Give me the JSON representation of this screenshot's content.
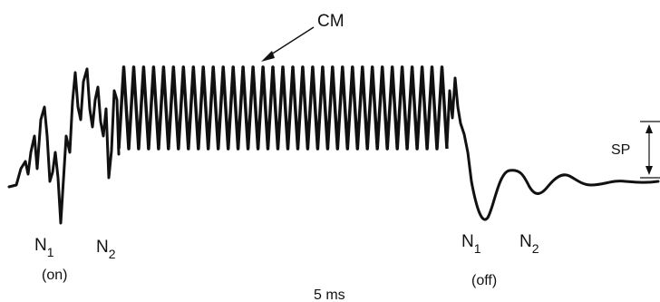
{
  "figure": {
    "labels": {
      "cm": "CM",
      "sp": "SP",
      "timescale": "5 ms",
      "onset_n1": "N",
      "onset_n1_sub": "1",
      "onset_n2": "N",
      "onset_n2_sub": "2",
      "onset_tag": "(on)",
      "offset_n1": "N",
      "offset_n1_sub": "1",
      "offset_n2": "N",
      "offset_n2_sub": "2",
      "offset_tag": "(off)"
    },
    "colors": {
      "trace": "#111111",
      "background": "#ffffff"
    }
  }
}
